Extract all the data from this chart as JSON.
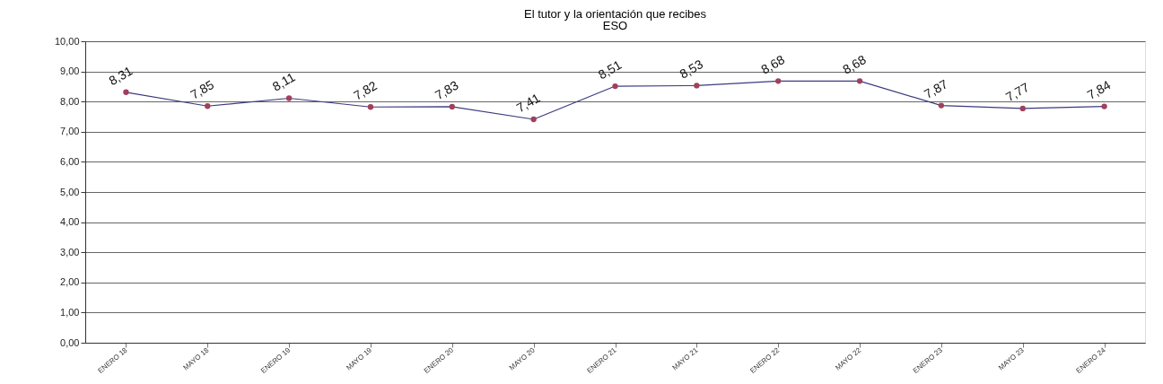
{
  "chart_data": {
    "type": "line",
    "title": "El tutor y la orientación que recibes",
    "subtitle": "ESO",
    "categories": [
      "ENERO 18",
      "MAYO 18",
      "ENERO 19",
      "MAYO 19",
      "ENERO 20",
      "MAYO 20",
      "ENERO 21",
      "MAYO 21",
      "ENERO 22",
      "MAYO 22",
      "ENERO 23",
      "MAYO 23",
      "ENERO 24"
    ],
    "series": [
      {
        "color": "#3b3a80",
        "values": [
          8.31,
          7.85,
          8.11,
          7.82,
          7.83,
          7.41,
          8.51,
          8.53,
          8.68,
          8.68,
          7.87,
          7.77,
          7.84
        ]
      }
    ],
    "value_labels": [
      "8,31",
      "7,85",
      "8,11",
      "7,82",
      "7,83",
      "7,41",
      "8,51",
      "8,53",
      "8,68",
      "8,68",
      "7,87",
      "7,77",
      "7,84"
    ],
    "ylim": [
      0,
      10
    ],
    "yticks": [
      {
        "value": 0,
        "label": "0,00"
      },
      {
        "value": 1,
        "label": "1,00"
      },
      {
        "value": 2,
        "label": "2,00"
      },
      {
        "value": 3,
        "label": "3,00"
      },
      {
        "value": 4,
        "label": "4,00"
      },
      {
        "value": 5,
        "label": "5,00"
      },
      {
        "value": 6,
        "label": "6,00"
      },
      {
        "value": 7,
        "label": "7,00"
      },
      {
        "value": 8,
        "label": "8,00"
      },
      {
        "value": 9,
        "label": "9,00"
      },
      {
        "value": 10,
        "label": "10,00"
      }
    ],
    "grid": "y",
    "marker": "circle",
    "line_style": "solid"
  }
}
